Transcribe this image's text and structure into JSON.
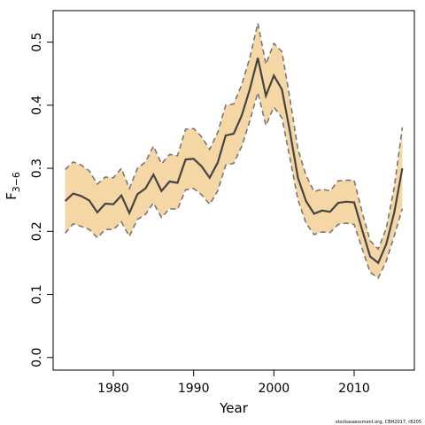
{
  "chart_data": {
    "type": "line",
    "xlabel": "Year",
    "ylabel_main": "F",
    "ylabel_sub": "3−6",
    "xlim": [
      1972.5,
      2017.5
    ],
    "ylim": [
      -0.02,
      0.55
    ],
    "xticks": [
      1980,
      1990,
      2000,
      2010
    ],
    "yticks": [
      0.0,
      0.1,
      0.2,
      0.3,
      0.4,
      0.5
    ],
    "ytick_labels": [
      "0.0",
      "0.1",
      "0.2",
      "0.3",
      "0.4",
      "0.5"
    ],
    "x": [
      1974,
      1975,
      1976,
      1977,
      1978,
      1979,
      1980,
      1981,
      1982,
      1983,
      1984,
      1985,
      1986,
      1987,
      1988,
      1989,
      1990,
      1991,
      1992,
      1993,
      1994,
      1995,
      1996,
      1997,
      1998,
      1999,
      2000,
      2001,
      2002,
      2003,
      2004,
      2005,
      2006,
      2007,
      2008,
      2009,
      2010,
      2011,
      2012,
      2013,
      2014,
      2015,
      2016
    ],
    "series": [
      {
        "role": "estimate",
        "color": "#444444",
        "values": [
          0.248,
          0.26,
          0.256,
          0.249,
          0.23,
          0.244,
          0.243,
          0.257,
          0.229,
          0.259,
          0.268,
          0.29,
          0.264,
          0.279,
          0.277,
          0.314,
          0.315,
          0.303,
          0.285,
          0.309,
          0.352,
          0.355,
          0.384,
          0.425,
          0.475,
          0.415,
          0.447,
          0.425,
          0.358,
          0.285,
          0.248,
          0.228,
          0.233,
          0.231,
          0.245,
          0.247,
          0.246,
          0.202,
          0.16,
          0.15,
          0.18,
          0.23,
          0.3
        ]
      },
      {
        "role": "upper",
        "color": "#777777",
        "values": [
          0.298,
          0.31,
          0.305,
          0.296,
          0.275,
          0.286,
          0.285,
          0.3,
          0.268,
          0.3,
          0.31,
          0.335,
          0.307,
          0.322,
          0.32,
          0.362,
          0.363,
          0.35,
          0.33,
          0.357,
          0.4,
          0.402,
          0.433,
          0.475,
          0.53,
          0.465,
          0.498,
          0.485,
          0.41,
          0.33,
          0.289,
          0.263,
          0.267,
          0.264,
          0.28,
          0.281,
          0.281,
          0.23,
          0.185,
          0.172,
          0.205,
          0.27,
          0.365
        ]
      },
      {
        "role": "lower",
        "color": "#777777",
        "values": [
          0.197,
          0.212,
          0.208,
          0.203,
          0.19,
          0.203,
          0.203,
          0.215,
          0.192,
          0.219,
          0.227,
          0.245,
          0.222,
          0.236,
          0.235,
          0.266,
          0.268,
          0.258,
          0.243,
          0.264,
          0.305,
          0.308,
          0.335,
          0.375,
          0.42,
          0.368,
          0.397,
          0.38,
          0.316,
          0.25,
          0.213,
          0.195,
          0.199,
          0.198,
          0.211,
          0.213,
          0.211,
          0.172,
          0.135,
          0.126,
          0.153,
          0.193,
          0.236
        ]
      }
    ],
    "band_color": "#f5d7a6",
    "grid": false,
    "legend": "none"
  },
  "footnote": "stockassessment.org, CBH2017, r8205"
}
